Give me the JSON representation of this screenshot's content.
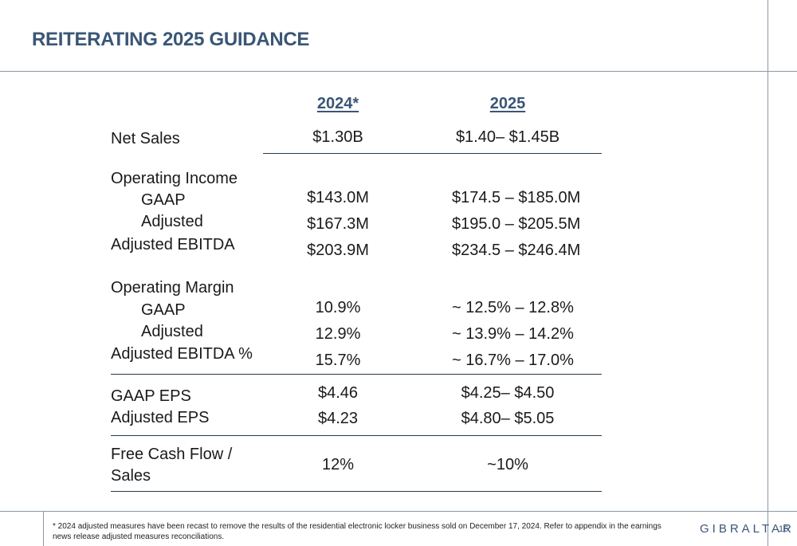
{
  "title": "REITERATING 2025 GUIDANCE",
  "columns": {
    "c2024": "2024*",
    "c2025": "2025"
  },
  "rows": {
    "net_sales": {
      "label": "Net Sales",
      "v2024": "$1.30B",
      "v2025": "$1.40– $1.45B"
    },
    "op_income_header": "Operating Income",
    "op_income_gaap": {
      "label": "GAAP",
      "v2024": "$143.0M",
      "v2025": "$174.5 – $185.0M"
    },
    "op_income_adj": {
      "label": "Adjusted",
      "v2024": "$167.3M",
      "v2025": "$195.0 – $205.5M"
    },
    "adj_ebitda": {
      "label": "Adjusted EBITDA",
      "v2024": "$203.9M",
      "v2025": "$234.5 – $246.4M"
    },
    "op_margin_header": "Operating Margin",
    "op_margin_gaap": {
      "label": "GAAP",
      "v2024": "10.9%",
      "v2025": "~ 12.5% – 12.8%"
    },
    "op_margin_adj": {
      "label": "Adjusted",
      "v2024": "12.9%",
      "v2025": "~ 13.9% – 14.2%"
    },
    "adj_ebitda_pct": {
      "label": "Adjusted EBITDA %",
      "v2024": "15.7%",
      "v2025": "~ 16.7% – 17.0%"
    },
    "gaap_eps": {
      "label": "GAAP EPS",
      "v2024": "$4.46",
      "v2025": "$4.25– $4.50"
    },
    "adj_eps": {
      "label": "Adjusted EPS",
      "v2024": "$4.23",
      "v2025": "$4.80– $5.05"
    },
    "fcf": {
      "label_line1": "Free Cash Flow /",
      "label_line2": "Sales",
      "v2024": "12%",
      "v2025": "~10%"
    }
  },
  "footnote": "* 2024 adjusted measures have been recast to remove the results of the residential electronic locker business sold on December 17, 2024. Refer to appendix in the earnings news release adjusted measures reconciliations.",
  "logo": "GIBRALTAR",
  "page_number": "16"
}
